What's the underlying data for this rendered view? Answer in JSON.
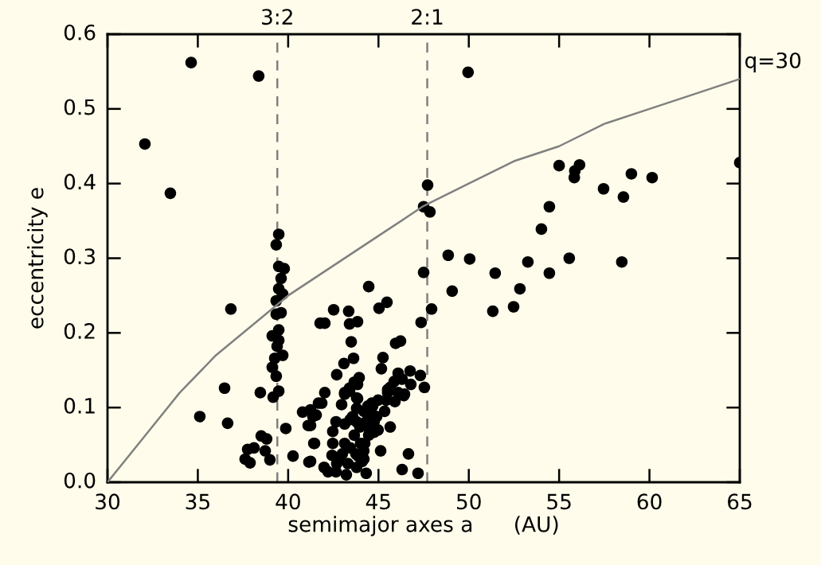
{
  "chart_data": {
    "type": "scatter",
    "xlabel": "semimajor axes a      (AU)",
    "ylabel": "eccentricity e",
    "xlim": [
      30,
      65
    ],
    "ylim": [
      0.0,
      0.6
    ],
    "xticks": [
      30,
      35,
      40,
      45,
      50,
      55,
      60,
      65
    ],
    "yticks": [
      {
        "value": 0.0,
        "label": "0.0"
      },
      0.1,
      0.2,
      0.3,
      0.4,
      0.5,
      0.6
    ],
    "grid": false,
    "marker": "circle",
    "series": [
      {
        "color": "#000000",
        "x": [
          32.07,
          34.63,
          33.48,
          38.37,
          47.72,
          47.5,
          47.85,
          49.96,
          55.0,
          56.13,
          55.87,
          55.84,
          59.0,
          60.15,
          57.46,
          58.56,
          65.0,
          54.46,
          54.02,
          48.86,
          50.05,
          51.46,
          53.27,
          54.46,
          55.56,
          58.47,
          47.5,
          47.94,
          49.08,
          51.33,
          52.48,
          52.83,
          44.46,
          45.03,
          45.47,
          42.52,
          43.35,
          41.77,
          42.03,
          43.4,
          43.84,
          47.36,
          43.49,
          45.95,
          46.22,
          43.62,
          45.25,
          45.16,
          43.09,
          42.69,
          43.93,
          43.84,
          42.03,
          41.86,
          43.13,
          43.4,
          43.84,
          42.96,
          46.75,
          47.32,
          47.54,
          46.09,
          46.79,
          46.31,
          45.87,
          45.51,
          45.43,
          46.4,
          45.91,
          44.68,
          45.34,
          41.55,
          41.24,
          41.46,
          41.24,
          42.65,
          42.47,
          43.13,
          42.47,
          42.43,
          41.99,
          42.21,
          42.65,
          43.22,
          42.87,
          43.13,
          43.44,
          43.31,
          43.79,
          44.32,
          43.88,
          44.19,
          43.66,
          43.79,
          43.57,
          43.79,
          43.79,
          44.41,
          44.63,
          44.32,
          44.76,
          44.98,
          44.46,
          44.76,
          44.24,
          44.1,
          44.98,
          45.65,
          45.12,
          46.66,
          46.31,
          47.19,
          45.51,
          45.65,
          46.09,
          46.44,
          43.4,
          43.13,
          43.66,
          43.44,
          44.19,
          44.63,
          44.9,
          44.41,
          43.97,
          44.01,
          43.75,
          43.0,
          42.69,
          44.19,
          39.48,
          39.78,
          39.61,
          39.48,
          39.7,
          39.34,
          39.61,
          39.34,
          39.48,
          39.12,
          39.48,
          39.39,
          39.7,
          39.26,
          39.12,
          39.34,
          39.48,
          39.17,
          39.34,
          39.48,
          36.83,
          36.48,
          35.11,
          36.65,
          38.46,
          38.51,
          38.81,
          37.76,
          38.11,
          38.73,
          37.62,
          37.89,
          38.99,
          39.87,
          40.27,
          41.15,
          40.8,
          41.24,
          41.37,
          41.11,
          41.42,
          41.68
        ],
        "values": [
          0.453,
          0.562,
          0.387,
          0.544,
          0.398,
          0.369,
          0.362,
          0.549,
          0.424,
          0.425,
          0.417,
          0.408,
          0.413,
          0.408,
          0.393,
          0.382,
          0.428,
          0.369,
          0.339,
          0.304,
          0.299,
          0.28,
          0.295,
          0.28,
          0.3,
          0.295,
          0.281,
          0.232,
          0.256,
          0.229,
          0.235,
          0.259,
          0.262,
          0.233,
          0.241,
          0.231,
          0.229,
          0.213,
          0.213,
          0.212,
          0.215,
          0.214,
          0.188,
          0.186,
          0.189,
          0.166,
          0.167,
          0.152,
          0.159,
          0.144,
          0.14,
          0.131,
          0.12,
          0.106,
          0.12,
          0.126,
          0.112,
          0.104,
          0.149,
          0.143,
          0.127,
          0.146,
          0.131,
          0.138,
          0.135,
          0.12,
          0.11,
          0.116,
          0.108,
          0.102,
          0.095,
          0.09,
          0.076,
          0.052,
          0.028,
          0.081,
          0.068,
          0.078,
          0.052,
          0.036,
          0.02,
          0.014,
          0.014,
          0.01,
          0.031,
          0.052,
          0.046,
          0.025,
          0.02,
          0.012,
          0.035,
          0.042,
          0.063,
          0.081,
          0.088,
          0.099,
          0.113,
          0.102,
          0.092,
          0.081,
          0.081,
          0.07,
          0.063,
          0.067,
          0.052,
          0.028,
          0.11,
          0.074,
          0.042,
          0.038,
          0.017,
          0.012,
          0.124,
          0.127,
          0.12,
          0.118,
          0.122,
          0.118,
          0.134,
          0.084,
          0.095,
          0.106,
          0.088,
          0.074,
          0.074,
          0.052,
          0.038,
          0.038,
          0.025,
          0.031,
          0.289,
          0.286,
          0.273,
          0.259,
          0.252,
          0.243,
          0.227,
          0.225,
          0.204,
          0.196,
          0.19,
          0.182,
          0.17,
          0.166,
          0.154,
          0.142,
          0.122,
          0.114,
          0.318,
          0.332,
          0.232,
          0.126,
          0.088,
          0.079,
          0.12,
          0.062,
          0.058,
          0.044,
          0.046,
          0.042,
          0.031,
          0.026,
          0.03,
          0.072,
          0.035,
          0.027,
          0.094,
          0.097,
          0.088,
          0.076,
          0.052,
          0.106
        ]
      },
      {
        "type": "line",
        "color": "#808080",
        "marker": "none",
        "x": [
          30,
          32,
          34,
          36,
          38,
          40,
          42.5,
          45,
          47.5,
          50,
          52.5,
          55,
          57.5,
          60,
          62.5,
          65
        ],
        "values": [
          0.0,
          0.06,
          0.12,
          0.17,
          0.21,
          0.25,
          0.29,
          0.33,
          0.37,
          0.4,
          0.43,
          0.45,
          0.48,
          0.5,
          0.52,
          0.54
        ]
      }
    ],
    "ref_lines": [
      {
        "axis": "x",
        "value": 39.4,
        "color": "#808080",
        "line_style": "dashed"
      },
      {
        "axis": "x",
        "value": 47.7,
        "color": "#808080",
        "line_style": "dashed"
      }
    ],
    "annotations": [
      "3:2",
      "2:1",
      {
        "text": "q=30",
        "x": 65,
        "y": 0.54
      }
    ]
  }
}
